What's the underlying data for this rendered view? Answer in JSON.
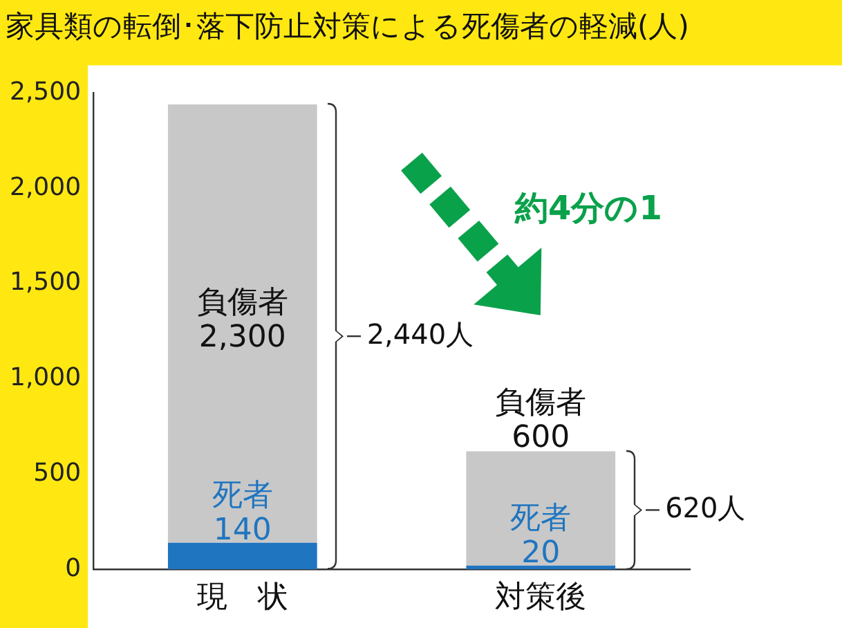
{
  "chart_data": {
    "type": "bar",
    "title": "家具類の転倒･落下防止対策による死傷者の軽減(人)",
    "categories": [
      "現　状",
      "対策後"
    ],
    "stacked": true,
    "legend": false,
    "grid": false,
    "series": [
      {
        "name": "死者",
        "color": "#1f75c0",
        "values": [
          140,
          20
        ],
        "value_labels": [
          "140",
          "20"
        ]
      },
      {
        "name": "負傷者",
        "color": "#c8c8c8",
        "values": [
          2300,
          600
        ],
        "value_labels": [
          "2,300",
          "600"
        ]
      }
    ],
    "totals": [
      "2,440人",
      "620人"
    ],
    "ylim": [
      0,
      2500
    ],
    "yticks": [
      {
        "value": 0,
        "label": "0"
      },
      {
        "value": 500,
        "label": "500"
      },
      {
        "value": 1000,
        "label": "1,000"
      },
      {
        "value": 1500,
        "label": "1,500"
      },
      {
        "value": 2000,
        "label": "2,000"
      },
      {
        "value": 2500,
        "label": "2,500"
      }
    ],
    "annotations": [
      "約4分の1"
    ]
  }
}
